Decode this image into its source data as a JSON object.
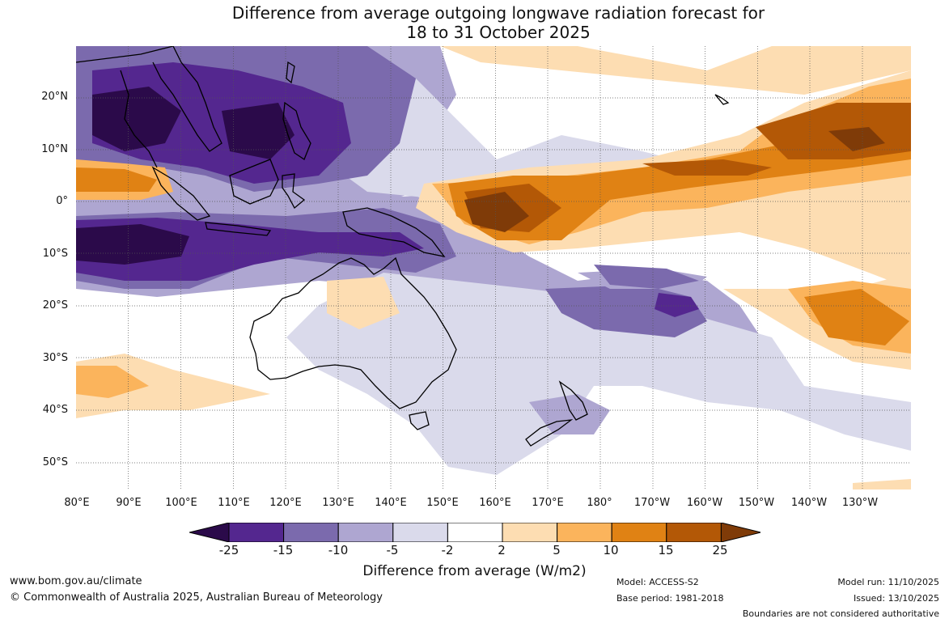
{
  "title": {
    "line1": "Difference from average outgoing longwave radiation forecast for",
    "line2": "18 to 31 October 2025"
  },
  "lat_labels": [
    "20°N",
    "10°N",
    "0°",
    "10°S",
    "20°S",
    "30°S",
    "40°S",
    "50°S"
  ],
  "lon_labels": [
    "80°E",
    "90°E",
    "100°E",
    "110°E",
    "120°E",
    "130°E",
    "140°E",
    "150°E",
    "160°E",
    "170°E",
    "180°",
    "170°W",
    "160°W",
    "150°W",
    "140°W",
    "130°W"
  ],
  "legend": {
    "title": "Difference from average (W/m2)",
    "ticks": [
      "-25",
      "-15",
      "-10",
      "-5",
      "-2",
      "2",
      "5",
      "10",
      "15",
      "25"
    ],
    "colors": [
      "#2b0a4a",
      "#54278f",
      "#7b6aad",
      "#aea6d1",
      "#dadaeb",
      "#ffffff",
      "#fdddb2",
      "#fbb45c",
      "#e08214",
      "#b35806",
      "#7f3b08"
    ]
  },
  "footer": {
    "url": "www.bom.gov.au/climate",
    "copyright": "© Commonwealth of Australia 2025, Australian Bureau of Meteorology",
    "model": "Model: ACCESS-S2",
    "base_period": "Base period: 1981-2018",
    "model_run": "Model run: 11/10/2025",
    "issued": "Issued: 13/10/2025",
    "disclaimer": "Boundaries are not considered authoritative"
  }
}
